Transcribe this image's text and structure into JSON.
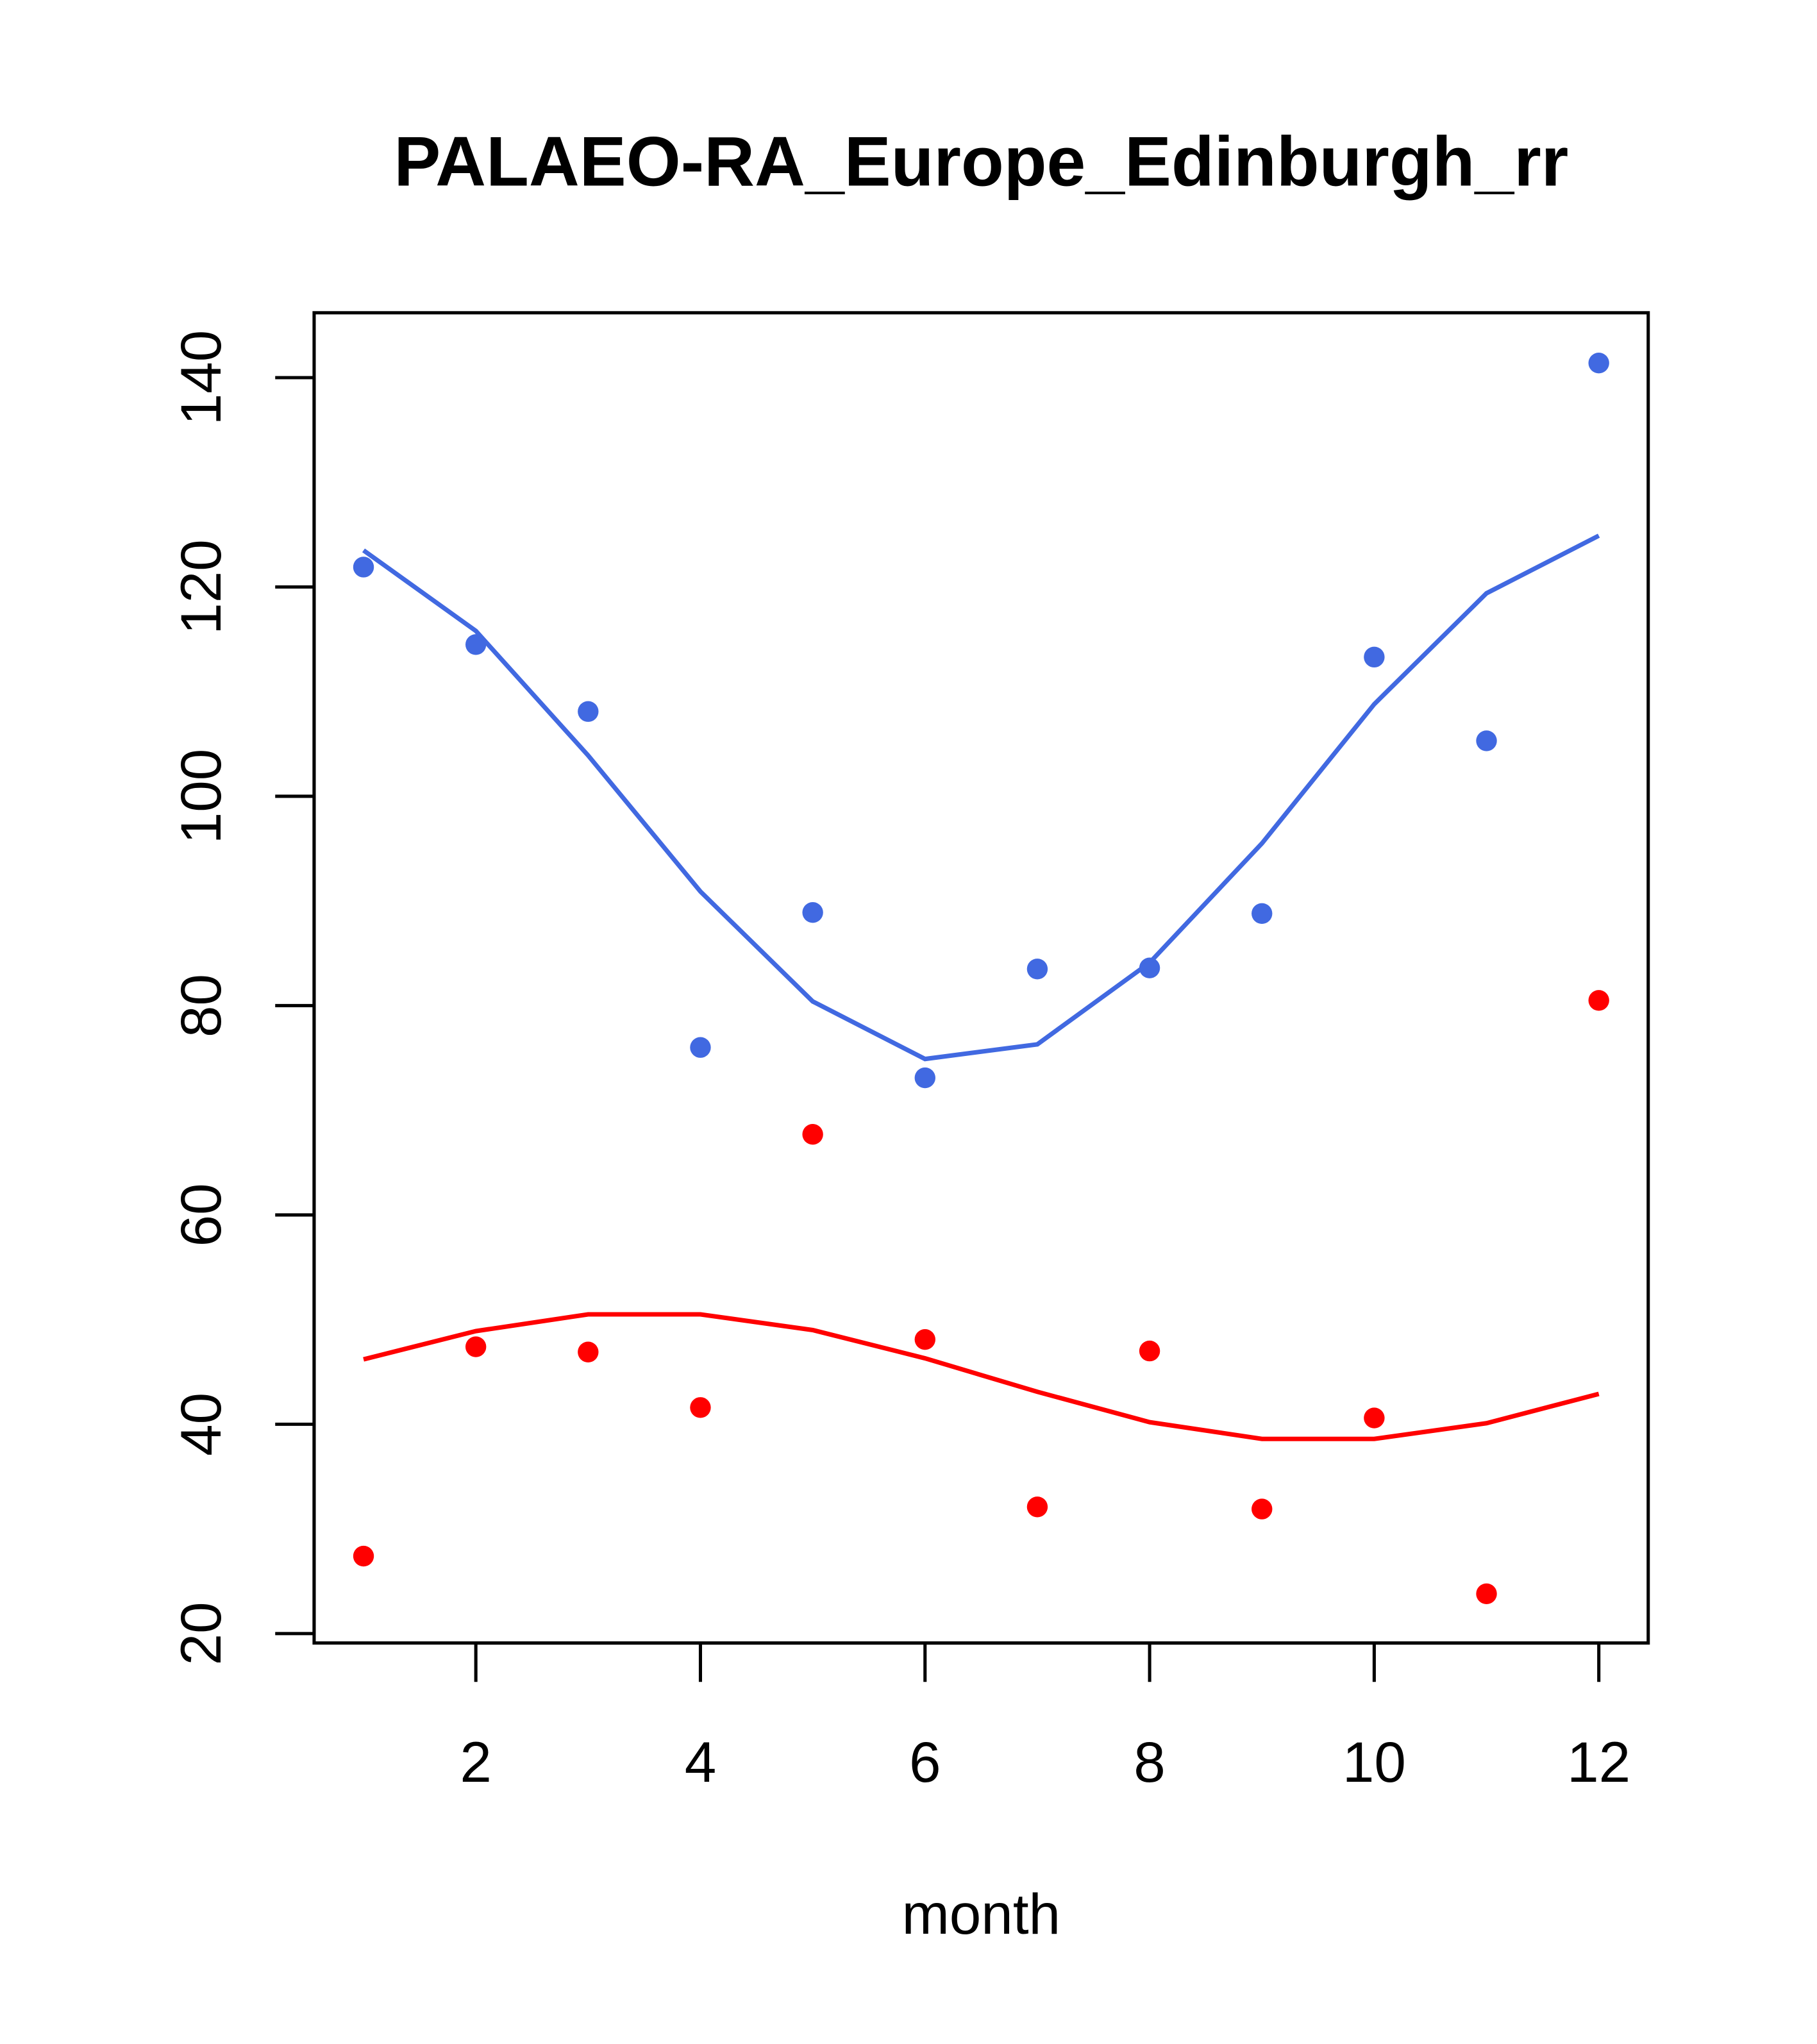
{
  "chart_data": {
    "type": "scatter",
    "title": "PALAEO-RA_Europe_Edinburgh_rr",
    "xlabel": "month",
    "ylabel": "",
    "xlim": [
      0.56,
      12.44
    ],
    "ylim": [
      19.1,
      146.2
    ],
    "xticks": [
      2,
      4,
      6,
      8,
      10,
      12
    ],
    "yticks": [
      20,
      40,
      60,
      80,
      100,
      120,
      140
    ],
    "grid": false,
    "x": [
      1,
      2,
      3,
      4,
      5,
      6,
      7,
      8,
      9,
      10,
      11,
      12
    ],
    "series": [
      {
        "name": "blue points",
        "kind": "points",
        "color": "#4169E1",
        "values": [
          121.9,
          114.5,
          108.1,
          76.0,
          88.9,
          73.1,
          83.5,
          83.6,
          88.8,
          113.3,
          105.3,
          141.4
        ]
      },
      {
        "name": "blue line",
        "kind": "line",
        "color": "#4169E1",
        "values": [
          123.5,
          115.8,
          103.9,
          90.9,
          80.4,
          74.9,
          76.3,
          84.1,
          95.5,
          108.8,
          119.4,
          124.9
        ]
      },
      {
        "name": "red points",
        "kind": "points",
        "color": "#FF0000",
        "values": [
          27.4,
          47.4,
          46.9,
          41.6,
          67.7,
          48.1,
          32.1,
          47.0,
          31.9,
          40.6,
          23.8,
          80.5
        ]
      },
      {
        "name": "red line",
        "kind": "line",
        "color": "#FF0000",
        "values": [
          46.2,
          48.9,
          50.5,
          50.5,
          49.0,
          46.3,
          43.1,
          40.2,
          38.6,
          38.6,
          40.1,
          42.9
        ]
      }
    ]
  }
}
